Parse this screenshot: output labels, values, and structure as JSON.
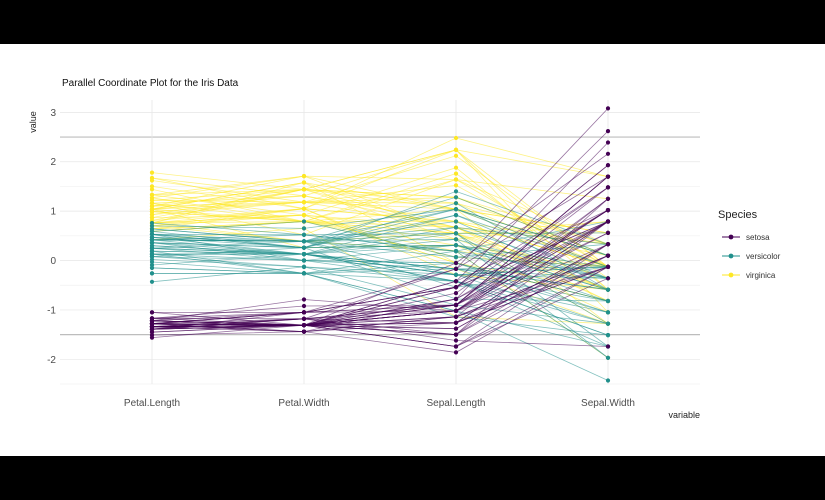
{
  "chart_data": {
    "type": "line",
    "title": "Parallel Coordinate Plot for the Iris Data",
    "xlabel": "variable",
    "ylabel": "value",
    "categories": [
      "Petal.Length",
      "Petal.Width",
      "Sepal.Length",
      "Sepal.Width"
    ],
    "yticks": [
      3,
      2,
      1,
      0,
      -1,
      -2
    ],
    "ylim": [
      -2.5,
      3.25
    ],
    "hlines": [
      2.5,
      -1.5
    ],
    "grid": true,
    "legend": {
      "title": "Species",
      "placement": "right"
    },
    "series": [
      {
        "name": "setosa",
        "color": "#440154",
        "lines": [
          [
            -1.34,
            -1.31,
            -0.9,
            1.02
          ],
          [
            -1.34,
            -1.31,
            -1.14,
            -0.13
          ],
          [
            -1.39,
            -1.31,
            -1.38,
            0.33
          ],
          [
            -1.28,
            -1.31,
            -1.5,
            0.1
          ],
          [
            -1.34,
            -1.31,
            -1.02,
            1.25
          ],
          [
            -1.17,
            -1.05,
            -0.54,
            1.93
          ],
          [
            -1.34,
            -1.18,
            -1.5,
            0.79
          ],
          [
            -1.28,
            -1.31,
            -1.02,
            0.79
          ],
          [
            -1.34,
            -1.31,
            -1.74,
            -0.36
          ],
          [
            -1.28,
            -1.44,
            -1.14,
            0.1
          ],
          [
            -1.28,
            -1.31,
            -0.54,
            1.48
          ],
          [
            -1.22,
            -1.31,
            -1.26,
            0.79
          ],
          [
            -1.34,
            -1.44,
            -1.26,
            -0.13
          ],
          [
            -1.51,
            -1.44,
            -1.86,
            -0.13
          ],
          [
            -1.45,
            -1.31,
            -0.05,
            2.16
          ],
          [
            -1.28,
            -1.05,
            -0.17,
            3.08
          ],
          [
            -1.39,
            -1.05,
            -0.54,
            1.93
          ],
          [
            -1.34,
            -1.18,
            -0.9,
            1.02
          ],
          [
            -1.17,
            -1.18,
            -0.17,
            1.7
          ],
          [
            -1.28,
            -1.18,
            -0.9,
            1.7
          ],
          [
            -1.17,
            -1.31,
            -0.54,
            0.79
          ],
          [
            -1.28,
            -1.05,
            -0.9,
            1.48
          ],
          [
            -1.56,
            -1.31,
            -1.5,
            1.25
          ],
          [
            -1.17,
            -0.92,
            -0.9,
            0.56
          ],
          [
            -1.05,
            -1.31,
            -1.26,
            0.79
          ],
          [
            -1.22,
            -1.31,
            -1.02,
            -0.13
          ],
          [
            -1.22,
            -1.05,
            -1.02,
            0.79
          ],
          [
            -1.28,
            -1.31,
            -0.78,
            1.02
          ],
          [
            -1.34,
            -1.31,
            -0.78,
            0.79
          ],
          [
            -1.22,
            -1.31,
            -1.38,
            0.33
          ],
          [
            -1.22,
            -1.31,
            -1.26,
            0.1
          ],
          [
            -1.28,
            -1.05,
            -0.54,
            0.79
          ],
          [
            -1.28,
            -1.44,
            -0.78,
            2.39
          ],
          [
            -1.34,
            -1.31,
            -0.42,
            2.62
          ],
          [
            -1.28,
            -1.31,
            -1.14,
            0.1
          ],
          [
            -1.45,
            -1.31,
            -1.02,
            0.33
          ],
          [
            -1.39,
            -1.31,
            -0.42,
            1.02
          ],
          [
            -1.34,
            -1.44,
            -1.14,
            1.25
          ],
          [
            -1.39,
            -1.31,
            -1.74,
            -0.13
          ],
          [
            -1.28,
            -1.31,
            -0.9,
            0.79
          ],
          [
            -1.39,
            -1.18,
            -1.02,
            1.02
          ],
          [
            -1.39,
            -1.18,
            -1.62,
            -1.74
          ],
          [
            -1.39,
            -1.31,
            -1.74,
            0.33
          ],
          [
            -1.22,
            -0.79,
            -1.02,
            1.02
          ],
          [
            -1.05,
            -1.05,
            -0.9,
            1.7
          ],
          [
            -1.34,
            -1.18,
            -1.26,
            -0.13
          ],
          [
            -1.22,
            -1.31,
            -0.9,
            1.7
          ],
          [
            -1.34,
            -1.31,
            -1.5,
            0.33
          ],
          [
            -1.28,
            -1.31,
            -0.66,
            1.48
          ],
          [
            -1.34,
            -1.31,
            -1.02,
            0.56
          ]
        ]
      },
      {
        "name": "versicolor",
        "color": "#21908C",
        "lines": [
          [
            0.53,
            0.26,
            1.4,
            0.33
          ],
          [
            0.42,
            0.39,
            0.67,
            0.33
          ],
          [
            0.64,
            0.39,
            1.28,
            0.1
          ],
          [
            0.13,
            0.13,
            -0.42,
            -1.74
          ],
          [
            0.47,
            0.39,
            0.79,
            -0.59
          ],
          [
            0.42,
            0.13,
            -0.17,
            -0.59
          ],
          [
            0.53,
            0.52,
            0.55,
            0.56
          ],
          [
            -0.26,
            -0.26,
            -1.14,
            -1.51
          ],
          [
            0.47,
            0.13,
            0.92,
            -0.36
          ],
          [
            0.08,
            0.26,
            -0.78,
            -0.82
          ],
          [
            -0.15,
            -0.26,
            -1.02,
            -2.43
          ],
          [
            0.25,
            0.39,
            0.07,
            -0.13
          ],
          [
            0.13,
            -0.26,
            0.19,
            -1.97
          ],
          [
            0.53,
            0.26,
            0.31,
            -0.36
          ],
          [
            -0.09,
            0.13,
            -0.29,
            -0.36
          ],
          [
            0.36,
            0.26,
            1.04,
            0.1
          ],
          [
            0.42,
            0.39,
            -0.29,
            -0.13
          ],
          [
            0.19,
            -0.26,
            -0.05,
            -0.82
          ],
          [
            0.42,
            0.39,
            0.43,
            -1.97
          ],
          [
            0.08,
            -0.13,
            -0.29,
            -1.28
          ],
          [
            0.59,
            0.79,
            0.07,
            0.33
          ],
          [
            0.13,
            0.13,
            0.31,
            -0.59
          ],
          [
            0.64,
            0.39,
            0.55,
            -1.28
          ],
          [
            0.53,
            0.0,
            0.31,
            -0.59
          ],
          [
            0.3,
            0.13,
            0.67,
            -0.36
          ],
          [
            0.36,
            0.26,
            0.92,
            -0.13
          ],
          [
            0.59,
            0.26,
            1.16,
            -0.59
          ],
          [
            0.7,
            0.65,
            1.04,
            -0.13
          ],
          [
            0.42,
            0.39,
            0.19,
            -0.36
          ],
          [
            -0.15,
            -0.26,
            -0.17,
            -1.05
          ],
          [
            0.02,
            -0.13,
            -0.42,
            -1.51
          ],
          [
            -0.03,
            -0.26,
            -0.42,
            -1.51
          ],
          [
            0.08,
            0.0,
            -0.05,
            -0.82
          ],
          [
            0.76,
            0.52,
            0.19,
            -0.82
          ],
          [
            0.42,
            0.39,
            -0.54,
            -0.13
          ],
          [
            0.42,
            0.52,
            0.19,
            0.79
          ],
          [
            0.53,
            0.39,
            1.04,
            0.1
          ],
          [
            0.36,
            0.13,
            0.55,
            -1.74
          ],
          [
            0.19,
            0.13,
            -0.29,
            -0.13
          ],
          [
            0.13,
            0.13,
            -0.42,
            -1.28
          ],
          [
            0.36,
            0.0,
            -0.42,
            -1.05
          ],
          [
            0.47,
            0.26,
            0.31,
            -0.13
          ],
          [
            0.13,
            0.0,
            -0.05,
            -1.05
          ],
          [
            -0.26,
            -0.26,
            -1.02,
            -1.74
          ],
          [
            0.25,
            0.13,
            -0.29,
            -0.82
          ],
          [
            0.25,
            0.0,
            -0.17,
            -0.13
          ],
          [
            0.25,
            0.13,
            -0.17,
            -0.36
          ],
          [
            0.3,
            0.13,
            0.43,
            -0.36
          ],
          [
            -0.43,
            -0.13,
            -0.9,
            -1.28
          ],
          [
            0.19,
            0.13,
            -0.17,
            -0.59
          ]
        ]
      },
      {
        "name": "virginica",
        "color": "#FDE725",
        "lines": [
          [
            1.27,
            1.71,
            0.55,
            0.56
          ],
          [
            0.76,
            0.92,
            -0.05,
            -0.82
          ],
          [
            1.22,
            1.18,
            1.52,
            -0.13
          ],
          [
            1.04,
            0.79,
            0.55,
            -0.36
          ],
          [
            1.16,
            1.31,
            0.79,
            -0.13
          ],
          [
            1.62,
            1.18,
            2.12,
            -0.13
          ],
          [
            0.42,
            0.65,
            -1.14,
            -1.28
          ],
          [
            1.44,
            0.79,
            1.76,
            -0.36
          ],
          [
            1.16,
            0.79,
            1.04,
            -1.28
          ],
          [
            1.33,
            1.71,
            1.64,
            1.25
          ],
          [
            0.76,
            1.05,
            0.79,
            0.33
          ],
          [
            0.87,
            0.92,
            0.67,
            -0.82
          ],
          [
            0.99,
            1.18,
            1.16,
            -0.13
          ],
          [
            0.7,
            1.05,
            -0.17,
            -1.28
          ],
          [
            0.76,
            1.58,
            -0.05,
            -0.59
          ],
          [
            0.87,
            1.44,
            0.67,
            0.33
          ],
          [
            0.99,
            0.79,
            0.79,
            -0.13
          ],
          [
            1.67,
            1.31,
            2.24,
            1.7
          ],
          [
            1.78,
            1.44,
            2.24,
            -1.05
          ],
          [
            0.7,
            0.39,
            0.19,
            -1.97
          ],
          [
            1.1,
            1.44,
            1.28,
            0.33
          ],
          [
            0.64,
            1.05,
            -0.29,
            -0.59
          ],
          [
            1.67,
            1.05,
            2.24,
            -0.59
          ],
          [
            0.64,
            0.79,
            0.55,
            -0.82
          ],
          [
            1.1,
            1.18,
            1.04,
            0.56
          ],
          [
            1.27,
            0.79,
            1.64,
            0.33
          ],
          [
            0.59,
            0.79,
            0.43,
            -0.59
          ],
          [
            0.64,
            0.79,
            0.31,
            -0.13
          ],
          [
            1.04,
            1.18,
            0.67,
            -0.59
          ],
          [
            1.16,
            0.52,
            1.64,
            -0.13
          ],
          [
            1.33,
            0.92,
            1.88,
            -0.59
          ],
          [
            1.5,
            1.05,
            2.48,
            1.7
          ],
          [
            1.04,
            1.31,
            0.67,
            -0.59
          ],
          [
            0.76,
            0.39,
            0.55,
            -0.59
          ],
          [
            1.04,
            0.26,
            0.31,
            -1.05
          ],
          [
            1.33,
            1.44,
            2.24,
            -0.13
          ],
          [
            1.04,
            1.58,
            0.55,
            0.79
          ],
          [
            0.99,
            0.79,
            0.67,
            0.1
          ],
          [
            0.59,
            0.79,
            0.19,
            -0.13
          ],
          [
            0.93,
            1.18,
            1.28,
            0.1
          ],
          [
            1.04,
            1.58,
            1.04,
            0.1
          ],
          [
            0.76,
            1.44,
            1.28,
            0.1
          ],
          [
            0.76,
            0.92,
            -0.05,
            -0.82
          ],
          [
            1.22,
            1.44,
            1.16,
            0.33
          ],
          [
            1.1,
            1.71,
            1.04,
            0.56
          ],
          [
            0.81,
            1.44,
            1.04,
            -0.13
          ],
          [
            0.7,
            0.92,
            0.55,
            -1.28
          ],
          [
            0.81,
            1.05,
            0.79,
            -0.13
          ],
          [
            0.93,
            1.44,
            0.43,
            0.79
          ],
          [
            0.76,
            0.79,
            0.07,
            -0.13
          ]
        ]
      }
    ]
  }
}
